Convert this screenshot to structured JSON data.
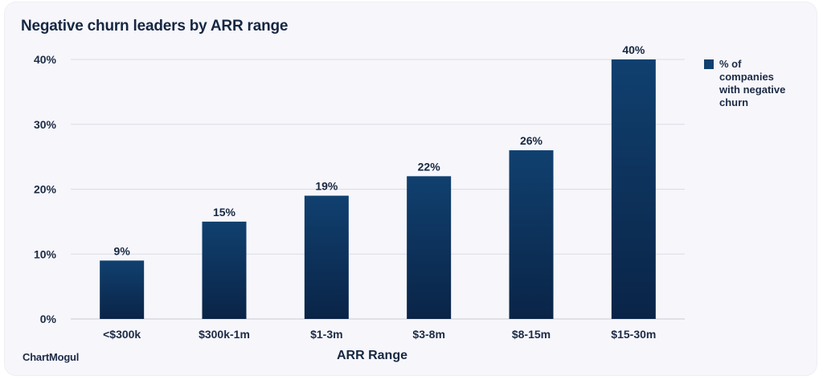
{
  "title": "Negative churn leaders by ARR range",
  "logo_text": "ChartMogul",
  "colors": {
    "bar_top": "#10406f",
    "bar_bottom": "#0a2447",
    "grid": "#dcdce6",
    "text": "#1c2b45"
  },
  "legend": {
    "label": "% of companies with negative churn"
  },
  "chart_data": {
    "type": "bar",
    "title": "Negative churn leaders by ARR range",
    "xlabel": "ARR Range",
    "ylabel": "",
    "categories": [
      "<$300k",
      "$300k-1m",
      "$1-3m",
      "$3-8m",
      "$8-15m",
      "$15-30m"
    ],
    "series": [
      {
        "name": "% of companies with negative churn",
        "values": [
          9,
          15,
          19,
          22,
          26,
          40
        ]
      }
    ],
    "value_labels": [
      "9%",
      "15%",
      "19%",
      "22%",
      "26%",
      "40%"
    ],
    "yticks": [
      0,
      10,
      20,
      30,
      40
    ],
    "ytick_labels": [
      "0%",
      "10%",
      "20%",
      "30%",
      "40%"
    ],
    "ylim": [
      0,
      40
    ],
    "grid": true,
    "legend_position": "top-right"
  }
}
